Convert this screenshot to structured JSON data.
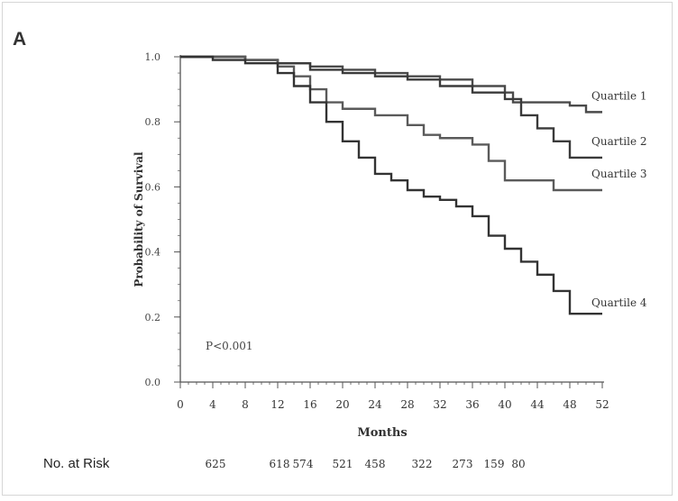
{
  "panel_label": "A",
  "risk": {
    "label": "No. at Risk",
    "values": [
      "625",
      "618",
      "574",
      "521",
      "458",
      "322",
      "273",
      "159",
      "80"
    ]
  },
  "colors": {
    "axis": "#555555",
    "q1": "#4a4a4a",
    "q2": "#3a3a3a",
    "q3": "#5a5a5a",
    "q4": "#333333"
  },
  "chart_data": {
    "type": "line",
    "title": "",
    "xlabel": "Months",
    "ylabel": "Probability of Survival",
    "xlim": [
      0,
      52
    ],
    "ylim": [
      0.0,
      1.0
    ],
    "x_ticks": [
      "0",
      "4",
      "8",
      "12",
      "16",
      "20",
      "24",
      "28",
      "32",
      "36",
      "40",
      "44",
      "48",
      "52"
    ],
    "y_ticks": [
      "0.0",
      "0.2",
      "0.4",
      "0.6",
      "0.8",
      "1.0"
    ],
    "annotation": "P<0.001",
    "series": [
      {
        "name": "Quartile 1",
        "x": [
          0,
          4,
          8,
          12,
          16,
          20,
          24,
          28,
          32,
          36,
          40,
          41,
          44,
          48,
          50,
          52
        ],
        "y": [
          1.0,
          1.0,
          0.99,
          0.98,
          0.97,
          0.96,
          0.95,
          0.94,
          0.93,
          0.91,
          0.89,
          0.86,
          0.86,
          0.85,
          0.83,
          0.83
        ]
      },
      {
        "name": "Quartile 2",
        "x": [
          0,
          4,
          8,
          12,
          16,
          20,
          24,
          28,
          32,
          36,
          40,
          42,
          44,
          46,
          48,
          52
        ],
        "y": [
          1.0,
          1.0,
          0.99,
          0.98,
          0.96,
          0.95,
          0.94,
          0.93,
          0.91,
          0.89,
          0.87,
          0.82,
          0.78,
          0.74,
          0.69,
          0.69
        ]
      },
      {
        "name": "Quartile 3",
        "x": [
          0,
          4,
          8,
          12,
          14,
          16,
          18,
          20,
          24,
          28,
          30,
          32,
          36,
          38,
          40,
          44,
          46,
          52
        ],
        "y": [
          1.0,
          1.0,
          0.99,
          0.97,
          0.94,
          0.9,
          0.86,
          0.84,
          0.82,
          0.79,
          0.76,
          0.75,
          0.73,
          0.68,
          0.62,
          0.62,
          0.59,
          0.59
        ]
      },
      {
        "name": "Quartile 4",
        "x": [
          0,
          4,
          8,
          12,
          14,
          16,
          18,
          20,
          22,
          24,
          26,
          28,
          30,
          32,
          34,
          36,
          38,
          40,
          42,
          44,
          46,
          48,
          52
        ],
        "y": [
          1.0,
          0.99,
          0.98,
          0.95,
          0.91,
          0.86,
          0.8,
          0.74,
          0.69,
          0.64,
          0.62,
          0.59,
          0.57,
          0.56,
          0.54,
          0.51,
          0.45,
          0.41,
          0.37,
          0.33,
          0.28,
          0.21,
          0.21
        ]
      }
    ]
  }
}
